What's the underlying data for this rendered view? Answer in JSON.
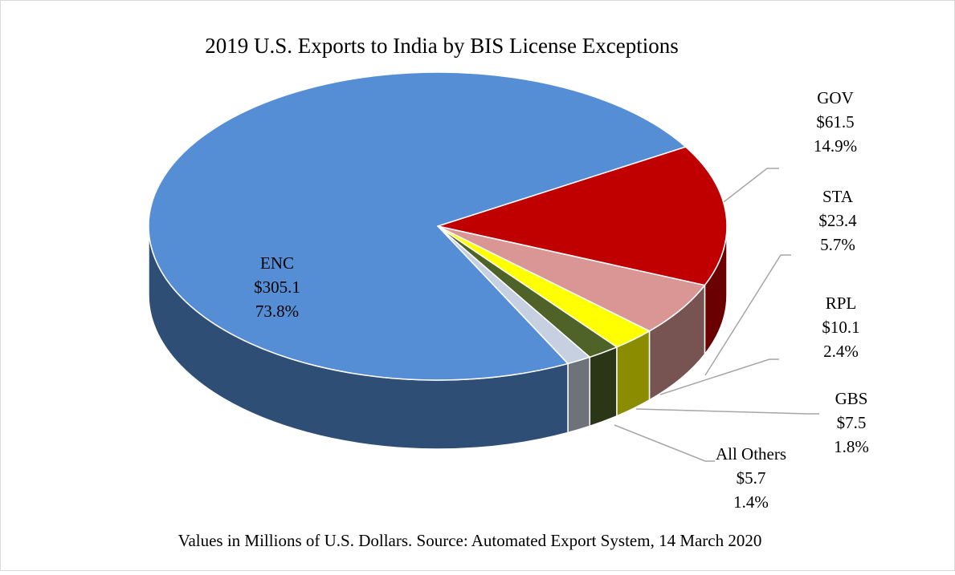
{
  "chart_data": {
    "type": "pie3d",
    "title": "2019 U.S. Exports to India by BIS License Exceptions",
    "footnote": "Values in Millions of U.S. Dollars. Source: Automated Export System,  14 March 2020",
    "categories": [
      "GOV",
      "STA",
      "RPL",
      "GBS",
      "All Others",
      "ENC"
    ],
    "values": [
      61.5,
      23.4,
      10.1,
      7.5,
      5.7,
      305.1
    ],
    "value_labels": [
      "$61.5",
      "$23.4",
      "$10.1",
      "$7.5",
      "$5.7",
      "$305.1"
    ],
    "percentages": [
      14.9,
      5.7,
      2.4,
      1.8,
      1.4,
      73.8
    ],
    "percentage_labels": [
      "14.9%",
      "5.7%",
      "2.4%",
      "1.8%",
      "1.4%",
      "73.8%"
    ],
    "colors": [
      "#c00000",
      "#d99694",
      "#ffff00",
      "#4f6228",
      "#c6d0e0",
      "#558ed5"
    ]
  }
}
